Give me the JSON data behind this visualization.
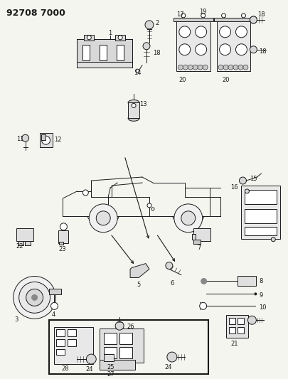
{
  "title": "92708 7000",
  "bg_color": "#f5f5f0",
  "line_color": "#1a1a1a",
  "figsize": [
    4.05,
    5.33
  ],
  "dpi": 100,
  "lw": 0.7
}
